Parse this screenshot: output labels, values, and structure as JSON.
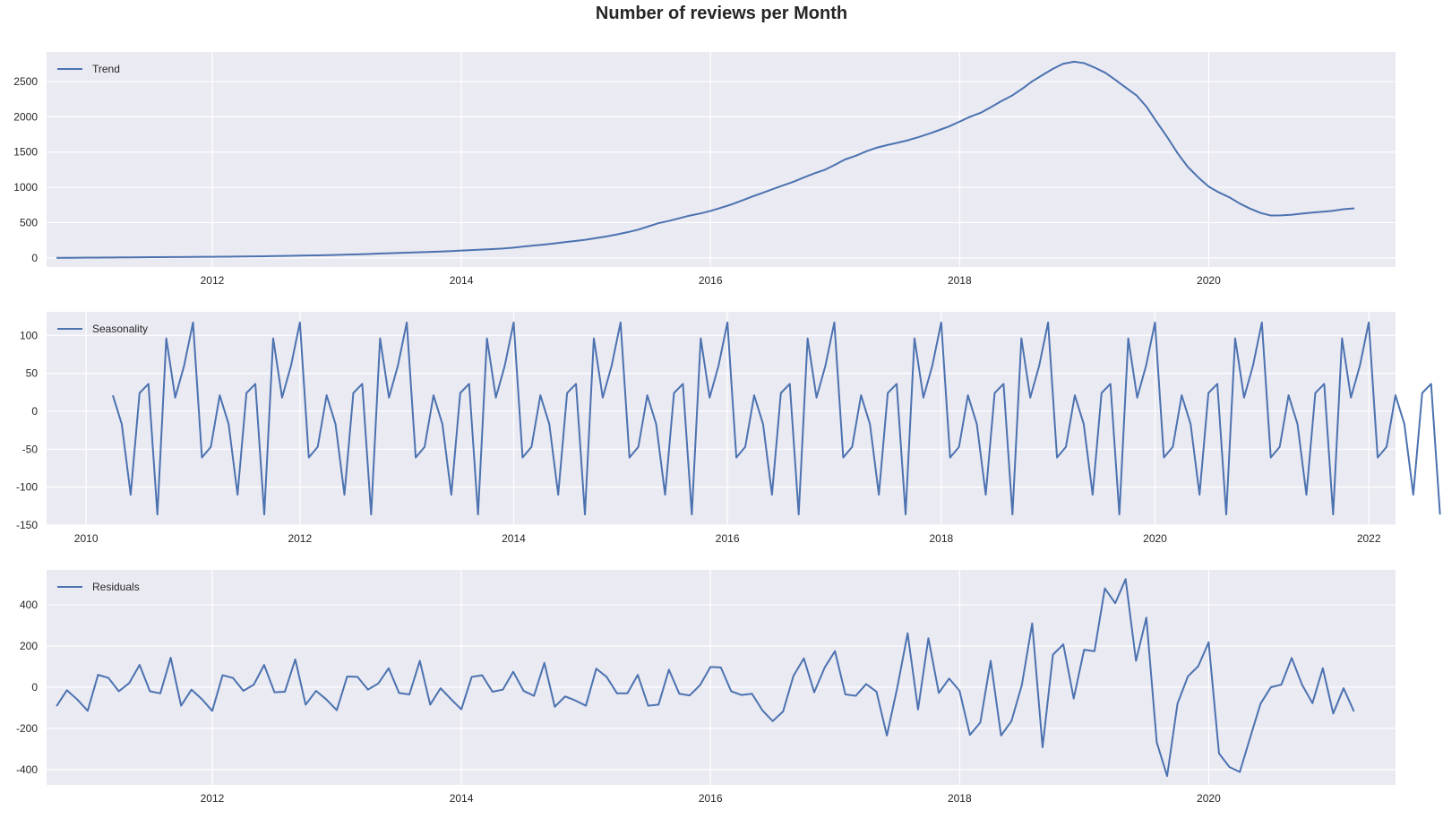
{
  "title": "Number of reviews per Month",
  "colors": {
    "plot_background": "#eaeaf2",
    "grid": "#ffffff",
    "series": "#4c72b0",
    "text": "#262626"
  },
  "chart_data": [
    {
      "type": "line",
      "title": "",
      "xlabel": "",
      "ylabel": "",
      "legend": {
        "placement": "top-left",
        "entries": [
          "Trend"
        ]
      },
      "grid": true,
      "xlim": [
        2010.67,
        2021.5
      ],
      "ylim": [
        -130,
        2920
      ],
      "xticks": [
        2012,
        2014,
        2016,
        2018,
        2020
      ],
      "yticks": [
        0,
        500,
        1000,
        1500,
        2000,
        2500
      ],
      "series": [
        {
          "name": "Trend",
          "x": [
            2010.75,
            2010.83,
            2010.92,
            2011.0,
            2011.08,
            2011.17,
            2011.25,
            2011.33,
            2011.42,
            2011.5,
            2011.58,
            2011.67,
            2011.75,
            2011.83,
            2011.92,
            2012.0,
            2012.08,
            2012.17,
            2012.25,
            2012.33,
            2012.42,
            2012.5,
            2012.58,
            2012.67,
            2012.75,
            2012.83,
            2012.92,
            2013.0,
            2013.08,
            2013.17,
            2013.25,
            2013.33,
            2013.42,
            2013.5,
            2013.58,
            2013.67,
            2013.75,
            2013.83,
            2013.92,
            2014.0,
            2014.08,
            2014.17,
            2014.25,
            2014.33,
            2014.42,
            2014.5,
            2014.58,
            2014.67,
            2014.75,
            2014.83,
            2014.92,
            2015.0,
            2015.08,
            2015.17,
            2015.25,
            2015.33,
            2015.42,
            2015.5,
            2015.58,
            2015.67,
            2015.75,
            2015.83,
            2015.92,
            2016.0,
            2016.08,
            2016.17,
            2016.25,
            2016.33,
            2016.42,
            2016.5,
            2016.58,
            2016.67,
            2016.75,
            2016.83,
            2016.92,
            2017.0,
            2017.08,
            2017.17,
            2017.25,
            2017.33,
            2017.42,
            2017.5,
            2017.58,
            2017.67,
            2017.75,
            2017.83,
            2017.92,
            2018.0,
            2018.08,
            2018.17,
            2018.25,
            2018.33,
            2018.42,
            2018.5,
            2018.58,
            2018.67,
            2018.75,
            2018.83,
            2018.92,
            2019.0,
            2019.08,
            2019.17,
            2019.25,
            2019.33,
            2019.42,
            2019.5,
            2019.58,
            2019.67,
            2019.75,
            2019.83,
            2019.92,
            2020.0,
            2020.08,
            2020.17,
            2020.25,
            2020.33,
            2020.42,
            2020.5,
            2020.58,
            2020.67,
            2020.75,
            2020.83,
            2020.92,
            2021.0,
            2021.08,
            2021.17
          ],
          "values": [
            0,
            1,
            2,
            3,
            4,
            5,
            6,
            7,
            8,
            9,
            10,
            11,
            12,
            13,
            14,
            15,
            16,
            17,
            19,
            21,
            23,
            25,
            27,
            30,
            33,
            36,
            39,
            42,
            46,
            50,
            55,
            60,
            65,
            70,
            75,
            80,
            85,
            90,
            96,
            103,
            110,
            117,
            124,
            132,
            145,
            160,
            175,
            190,
            205,
            222,
            240,
            258,
            280,
            305,
            332,
            362,
            400,
            445,
            490,
            525,
            562,
            598,
            630,
            665,
            708,
            758,
            812,
            866,
            922,
            975,
            1025,
            1082,
            1140,
            1195,
            1250,
            1320,
            1395,
            1450,
            1510,
            1560,
            1600,
            1632,
            1665,
            1712,
            1758,
            1808,
            1868,
            1932,
            1998,
            2058,
            2135,
            2218,
            2300,
            2395,
            2500,
            2598,
            2682,
            2752,
            2782,
            2762,
            2702,
            2625,
            2525,
            2420,
            2305,
            2145,
            1935,
            1705,
            1485,
            1295,
            1135,
            1010,
            930,
            855,
            770,
            700,
            635,
            600,
            602,
            612,
            628,
            642,
            655,
            668,
            690,
            702
          ]
        }
      ]
    },
    {
      "type": "line",
      "title": "",
      "xlabel": "",
      "ylabel": "",
      "legend": {
        "placement": "top-left",
        "entries": [
          "Seasonality"
        ]
      },
      "grid": true,
      "xlim": [
        2009.63,
        2022.25
      ],
      "ylim": [
        -150,
        131
      ],
      "xticks": [
        2010,
        2012,
        2014,
        2016,
        2018,
        2020,
        2022
      ],
      "yticks": [
        -150,
        -100,
        -50,
        0,
        50,
        100
      ],
      "series": [
        {
          "name": "Seasonality",
          "x_start": 2010.25,
          "x_step": 0.08333,
          "pattern": [
            21,
            -17,
            -110,
            24,
            36,
            -136,
            96,
            18,
            60,
            117,
            -61,
            -47
          ],
          "values": [
            21,
            -17,
            -110,
            24,
            36,
            -136,
            96,
            18,
            60,
            117,
            -61,
            -47,
            21,
            -17,
            -110,
            24,
            36,
            -136,
            96,
            18,
            60,
            117,
            -61,
            -47,
            21,
            -17,
            -110,
            24,
            36,
            -136,
            96,
            18,
            60,
            117,
            -61,
            -47,
            21,
            -17,
            -110,
            24,
            36,
            -136,
            96,
            18,
            60,
            117,
            -61,
            -47,
            21,
            -17,
            -110,
            24,
            36,
            -136,
            96,
            18,
            60,
            117,
            -61,
            -47,
            21,
            -17,
            -110,
            24,
            36,
            -136,
            96,
            18,
            60,
            117,
            -61,
            -47,
            21,
            -17,
            -110,
            24,
            36,
            -136,
            96,
            18,
            60,
            117,
            -61,
            -47,
            21,
            -17,
            -110,
            24,
            36,
            -136,
            96,
            18,
            60,
            117,
            -61,
            -47,
            21,
            -17,
            -110,
            24,
            36,
            -136,
            96,
            18,
            60,
            117,
            -61,
            -47,
            21,
            -17,
            -110,
            24,
            36,
            -136,
            96,
            18,
            60,
            117,
            -61,
            -47,
            21,
            -17,
            -110,
            24,
            36,
            -136,
            96,
            18,
            60,
            117,
            -61,
            -47,
            21,
            -17,
            -110,
            24,
            36,
            -136,
            96,
            18,
            60,
            117,
            -61,
            -47,
            21,
            -17,
            -110,
            24,
            36,
            -136
          ]
        }
      ]
    },
    {
      "type": "line",
      "title": "",
      "xlabel": "",
      "ylabel": "",
      "legend": {
        "placement": "top-left",
        "entries": [
          "Residuals"
        ]
      },
      "grid": true,
      "xlim": [
        2010.67,
        2021.5
      ],
      "ylim": [
        -475,
        570
      ],
      "xticks": [
        2012,
        2014,
        2016,
        2018,
        2020
      ],
      "yticks": [
        -400,
        -200,
        0,
        200,
        400
      ],
      "series": [
        {
          "name": "Residuals",
          "x_start": 2010.75,
          "x_step": 0.08333,
          "values": [
            -92,
            -15,
            -60,
            -115,
            60,
            45,
            -20,
            20,
            108,
            -20,
            -30,
            143,
            -90,
            -12,
            -58,
            -115,
            58,
            45,
            -18,
            12,
            108,
            -25,
            -22,
            135,
            -85,
            -18,
            -60,
            -112,
            52,
            50,
            -12,
            18,
            92,
            -28,
            -35,
            128,
            -85,
            -5,
            -58,
            -108,
            50,
            58,
            -22,
            -12,
            75,
            -18,
            -42,
            118,
            -95,
            -45,
            -65,
            -90,
            90,
            50,
            -30,
            -30,
            60,
            -90,
            -85,
            85,
            -32,
            -40,
            10,
            98,
            96,
            -20,
            -38,
            -32,
            -112,
            -165,
            -118,
            55,
            140,
            -25,
            95,
            175,
            -35,
            -42,
            15,
            -22,
            -235,
            -2,
            262,
            -108,
            238,
            -28,
            42,
            -18,
            -232,
            -172,
            128,
            -235,
            -165,
            10,
            310,
            -292,
            158,
            208,
            -55,
            182,
            175,
            480,
            408,
            525,
            128,
            338,
            -268,
            -432,
            -80,
            52,
            102,
            218,
            -322,
            -388,
            -412,
            -245,
            -80,
            0,
            12,
            142,
            12,
            -78,
            92,
            -128,
            -5,
            -118
          ]
        }
      ]
    }
  ]
}
